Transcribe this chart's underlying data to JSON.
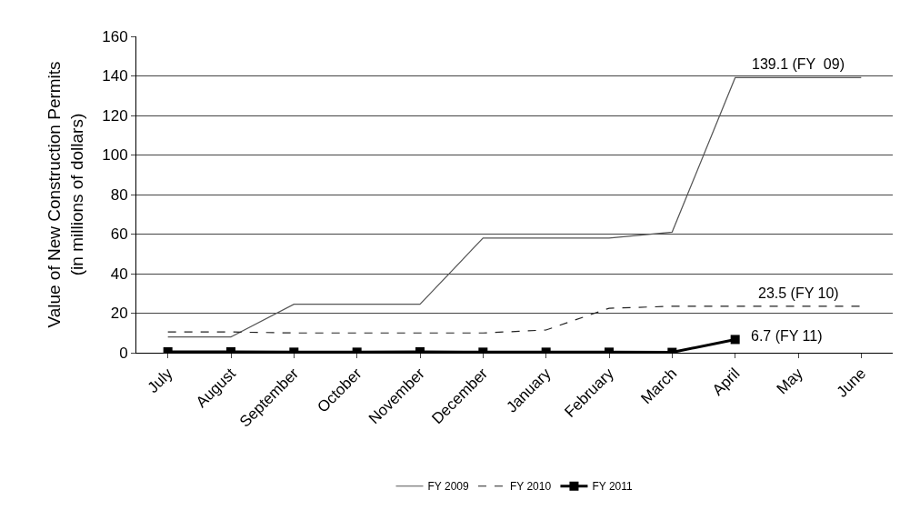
{
  "chart_data": {
    "type": "line",
    "ylabel": "Value of New Construction Permits\n(in millions of dollars)",
    "categories": [
      "July",
      "August",
      "September",
      "October",
      "November",
      "December",
      "January",
      "February",
      "March",
      "April",
      "May",
      "June"
    ],
    "ylim": [
      0,
      160
    ],
    "yticks": [
      0,
      20,
      40,
      60,
      80,
      100,
      120,
      140,
      160
    ],
    "grid": "y",
    "legend": "bottom",
    "series": [
      {
        "name": "FY 2009",
        "color": "#555555",
        "line_style": "solid",
        "marker": "none",
        "values": [
          8,
          8,
          24.5,
          24.5,
          24.5,
          58,
          58,
          58,
          61,
          139.1,
          139.1,
          139.1
        ]
      },
      {
        "name": "FY 2010",
        "color": "#222222",
        "line_style": "dashed",
        "marker": "none",
        "values": [
          10.5,
          10.5,
          10,
          10,
          10,
          10,
          11.5,
          22.5,
          23.5,
          23.5,
          23.5,
          23.5
        ]
      },
      {
        "name": "FY 2011",
        "color": "#000000",
        "line_style": "solid",
        "marker": "square",
        "values": [
          0.5,
          0.5,
          0.3,
          0.3,
          0.5,
          0.3,
          0.3,
          0.3,
          0.2,
          6.7,
          null,
          null
        ]
      }
    ],
    "annotations": [
      {
        "text": "139.1 (FY  09)",
        "x": "May",
        "y": 139.1
      },
      {
        "text": "23.5 (FY 10)",
        "x": "May",
        "y": 23.5
      },
      {
        "text": "6.7 (FY 11)",
        "x": "April",
        "y": 6.7
      }
    ]
  }
}
